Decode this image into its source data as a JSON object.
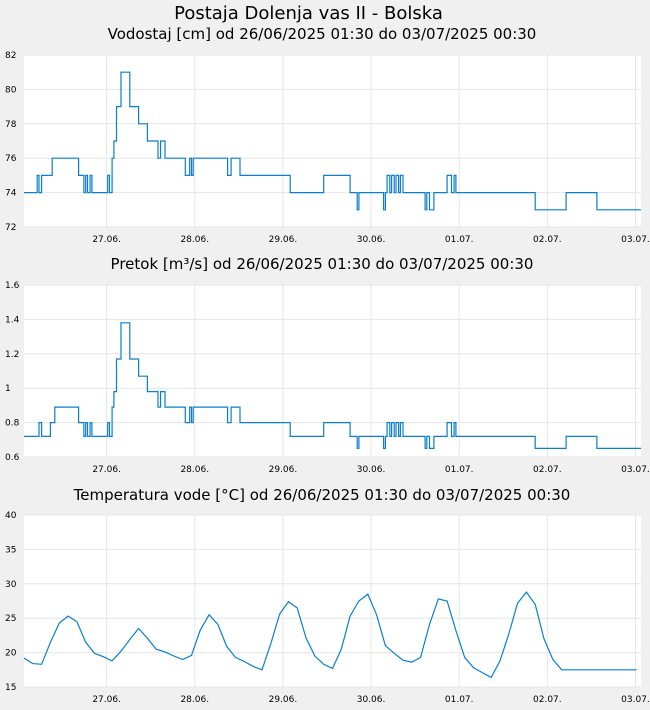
{
  "station_title": "Postaja Dolenja vas II - Bolska",
  "colors": {
    "line": "#0a7ed0",
    "grid": "#e6e6e6",
    "plot_bg": "#ffffff",
    "page_bg": "#f0f0f0"
  },
  "chart_data": [
    {
      "type": "line",
      "title": "Vodostaj [cm] od 26/06/2025 01:30 do 03/07/2025 00:30",
      "ylim": [
        72,
        82
      ],
      "yticks": [
        "72",
        "74",
        "76",
        "78",
        "80",
        "82"
      ],
      "xticks": [
        "27.06.",
        "28.06.",
        "29.06.",
        "30.06.",
        "01.07.",
        "02.07.",
        "03.07."
      ],
      "xlim": [
        0,
        7.0
      ],
      "grid": true,
      "series": [
        {
          "x": [
            0,
            0.12,
            0.15,
            0.17,
            0.2,
            0.3,
            0.32,
            0.35,
            0.36,
            0.6,
            0.62,
            0.65,
            0.68,
            0.7,
            0.72,
            0.75,
            0.77,
            0.8,
            0.82,
            0.85,
            0.95,
            0.97,
            1.0,
            1.02,
            1.05,
            1.1,
            1.15,
            1.2,
            1.25,
            1.3,
            1.35,
            1.4,
            1.5,
            1.52,
            1.55,
            1.6,
            1.65,
            1.7,
            1.8,
            1.83,
            1.88,
            1.9,
            1.92,
            1.95,
            2.0,
            2.2,
            2.3,
            2.31,
            2.35,
            2.4,
            2.45,
            2.5,
            2.52,
            2.6,
            2.7,
            2.8,
            2.9,
            3.0,
            3.02,
            3.05,
            3.2,
            3.3,
            3.4,
            3.5,
            3.55,
            3.7,
            3.75,
            3.78,
            3.8,
            3.9,
            4.0,
            4.05,
            4.08,
            4.1,
            4.12,
            4.15,
            4.17,
            4.2,
            4.22,
            4.25,
            4.27,
            4.3,
            4.35,
            4.5,
            4.55,
            4.57,
            4.6,
            4.65,
            4.7,
            4.75,
            4.8,
            4.82,
            4.85,
            4.88,
            4.9,
            4.95,
            5.4,
            5.8,
            6.15,
            6.5
          ],
          "y": [
            74,
            74,
            75,
            74,
            75,
            75,
            76,
            76,
            76,
            76,
            75,
            75,
            74,
            75,
            74,
            75,
            74,
            74,
            74,
            74,
            75,
            74,
            76,
            77,
            79,
            81,
            81,
            79,
            79,
            78,
            78,
            77,
            77,
            76,
            77,
            76,
            76,
            76,
            76,
            75,
            76,
            75,
            76,
            76,
            76,
            76,
            76,
            75,
            76,
            76,
            75,
            75,
            75,
            75,
            75,
            75,
            75,
            75,
            74,
            74,
            74,
            74,
            75,
            75,
            75,
            74,
            74,
            73,
            74,
            74,
            74,
            74,
            73,
            74,
            75,
            74,
            75,
            74,
            75,
            74,
            75,
            74,
            74,
            74,
            73,
            74,
            73,
            74,
            74,
            74,
            75,
            75,
            74,
            75,
            74,
            74,
            74,
            73,
            74,
            73
          ]
        }
      ]
    },
    {
      "type": "line",
      "title": "Pretok [m³/s] od 26/06/2025 01:30 do 03/07/2025 00:30",
      "ylim": [
        0.6,
        1.6
      ],
      "yticks": [
        "0.6",
        "0.8",
        "1",
        "1.2",
        "1.4",
        "1.6"
      ],
      "xticks": [
        "27.06.",
        "28.06.",
        "29.06.",
        "30.06.",
        "01.07.",
        "02.07.",
        "03.07."
      ],
      "xlim": [
        0,
        7.0
      ],
      "grid": true,
      "series": [
        {
          "x": [
            0,
            0.15,
            0.17,
            0.2,
            0.3,
            0.32,
            0.35,
            0.6,
            0.62,
            0.65,
            0.68,
            0.7,
            0.72,
            0.75,
            0.77,
            0.8,
            0.82,
            0.85,
            0.95,
            0.97,
            1.0,
            1.02,
            1.05,
            1.1,
            1.15,
            1.2,
            1.25,
            1.3,
            1.35,
            1.4,
            1.5,
            1.52,
            1.55,
            1.6,
            1.65,
            1.7,
            1.8,
            1.83,
            1.88,
            1.9,
            1.92,
            1.95,
            2.0,
            2.2,
            2.3,
            2.31,
            2.35,
            2.4,
            2.45,
            2.5,
            2.52,
            2.6,
            2.7,
            2.8,
            2.9,
            3.0,
            3.02,
            3.05,
            3.2,
            3.3,
            3.4,
            3.5,
            3.55,
            3.7,
            3.75,
            3.78,
            3.8,
            3.9,
            4.0,
            4.05,
            4.08,
            4.1,
            4.12,
            4.15,
            4.17,
            4.2,
            4.22,
            4.25,
            4.27,
            4.3,
            4.35,
            4.5,
            4.55,
            4.57,
            4.6,
            4.65,
            4.7,
            4.75,
            4.8,
            4.82,
            4.85,
            4.88,
            4.9,
            4.95,
            5.4,
            5.8,
            6.15,
            6.5
          ],
          "y": [
            0.72,
            0.72,
            0.8,
            0.72,
            0.8,
            0.8,
            0.89,
            0.89,
            0.8,
            0.8,
            0.72,
            0.8,
            0.72,
            0.8,
            0.72,
            0.72,
            0.72,
            0.72,
            0.8,
            0.72,
            0.89,
            0.98,
            1.17,
            1.38,
            1.38,
            1.17,
            1.17,
            1.07,
            1.07,
            0.98,
            0.98,
            0.89,
            0.98,
            0.89,
            0.89,
            0.89,
            0.89,
            0.8,
            0.89,
            0.8,
            0.89,
            0.89,
            0.89,
            0.89,
            0.89,
            0.8,
            0.89,
            0.89,
            0.8,
            0.8,
            0.8,
            0.8,
            0.8,
            0.8,
            0.8,
            0.8,
            0.72,
            0.72,
            0.72,
            0.72,
            0.8,
            0.8,
            0.8,
            0.72,
            0.72,
            0.65,
            0.72,
            0.72,
            0.72,
            0.72,
            0.65,
            0.72,
            0.8,
            0.72,
            0.8,
            0.72,
            0.8,
            0.72,
            0.8,
            0.72,
            0.72,
            0.72,
            0.65,
            0.72,
            0.65,
            0.72,
            0.72,
            0.72,
            0.8,
            0.8,
            0.72,
            0.8,
            0.72,
            0.72,
            0.72,
            0.65,
            0.72,
            0.65
          ]
        }
      ]
    },
    {
      "type": "line",
      "title": "Temperatura vode [°C] od 26/06/2025 01:30 do 03/07/2025 00:30",
      "ylim": [
        15,
        40
      ],
      "yticks": [
        "15",
        "20",
        "25",
        "30",
        "35",
        "40"
      ],
      "xticks": [
        "27.06.",
        "28.06.",
        "29.06.",
        "30.06.",
        "01.07.",
        "02.07.",
        "03.07."
      ],
      "xlim": [
        0,
        7.0
      ],
      "grid": true,
      "series": [
        {
          "x": [
            0,
            0.1,
            0.2,
            0.3,
            0.4,
            0.5,
            0.6,
            0.7,
            0.8,
            0.9,
            1.0,
            1.1,
            1.2,
            1.3,
            1.4,
            1.5,
            1.6,
            1.7,
            1.8,
            1.9,
            2.0,
            2.1,
            2.2,
            2.3,
            2.4,
            2.5,
            2.6,
            2.7,
            2.8,
            2.9,
            3.0,
            3.1,
            3.2,
            3.3,
            3.4,
            3.5,
            3.6,
            3.7,
            3.8,
            3.9,
            4.0,
            4.1,
            4.2,
            4.3,
            4.4,
            4.5,
            4.6,
            4.7,
            4.8,
            4.9,
            5.0,
            5.1,
            5.2,
            5.3,
            5.4,
            5.5,
            5.6,
            5.7,
            5.8,
            5.9,
            6.0,
            6.1,
            6.2,
            6.3,
            6.4,
            6.5,
            6.6,
            6.7,
            6.8,
            6.95
          ],
          "y": [
            19.2,
            18.4,
            18.3,
            21.5,
            24.3,
            25.3,
            24.5,
            21.5,
            19.9,
            19.4,
            18.8,
            20.2,
            21.9,
            23.5,
            22.1,
            20.5,
            20.1,
            19.5,
            19.0,
            19.6,
            23.3,
            25.5,
            24.1,
            20.9,
            19.3,
            18.7,
            18.0,
            17.5,
            21.3,
            25.6,
            27.4,
            26.5,
            22.1,
            19.5,
            18.3,
            17.7,
            20.5,
            25.3,
            27.5,
            28.5,
            25.5,
            21.0,
            19.9,
            18.9,
            18.6,
            19.3,
            24.1,
            27.8,
            27.5,
            23.2,
            19.3,
            17.8,
            17.1,
            16.4,
            18.8,
            22.7,
            27.2,
            28.8,
            27.0,
            22.0,
            19.0,
            17.5,
            17.5,
            17.5,
            17.5,
            17.5,
            17.5,
            17.5,
            17.5,
            17.5
          ]
        }
      ]
    }
  ]
}
